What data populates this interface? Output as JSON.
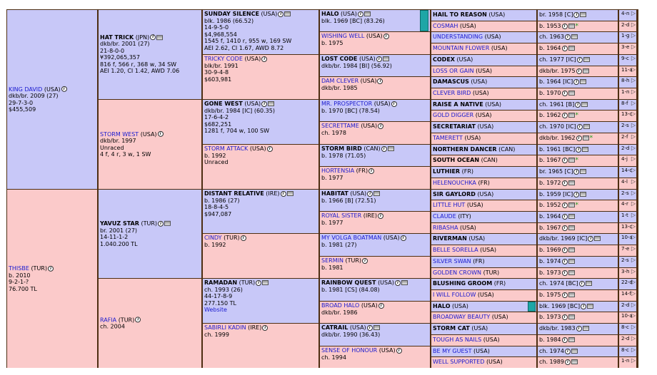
{
  "gen1": [
    {
      "name": "KING DAVID",
      "country": "(USA)",
      "color": "dkb/br. 2009 (27)",
      "lines": [
        "29-7-3-0",
        "$455,509"
      ],
      "sex": "m"
    },
    {
      "name": "THISBE",
      "country": "(TUR)",
      "color": "b. 2010",
      "lines": [
        "9-2-1-?",
        "76.700 TL"
      ],
      "sex": "f"
    }
  ],
  "gen2": [
    {
      "name": "HAT TRICK",
      "country": "(JPN)",
      "color": "dkb/br. 2001 (27)",
      "lines": [
        "21-8-0-0",
        "¥392,065,357",
        "816 f, 566 r, 368 w, 34 SW",
        "AEI 1.20, CI 1.42, AWD 7.06"
      ],
      "sex": "m",
      "bold": true
    },
    {
      "name": "STORM WEST",
      "country": "(USA)",
      "color": "dkb/br. 1997",
      "lines": [
        "Unraced",
        "4 f, 4 r, 3 w, 1 SW"
      ],
      "sex": "f",
      "bold": false
    },
    {
      "name": "YAVUZ STAR",
      "country": "(TUR)",
      "color": "br. 2001 (27)",
      "lines": [
        "14-11-1-2",
        "1.040.200 TL"
      ],
      "sex": "m",
      "bold": true
    },
    {
      "name": "RAFIA",
      "country": "(TUR)",
      "color": "ch. 2004",
      "lines": [],
      "sex": "f",
      "bold": false
    }
  ],
  "gen3": [
    {
      "name": "SUNDAY SILENCE",
      "country": "(USA)",
      "color": "blk. 1986 (66.52)",
      "lines": [
        "14-9-5-0",
        "$4,968,554",
        "1545 f, 1410 r, 955 w, 169 SW",
        "AEI 2.62, CI 1.67, AWD 8.72"
      ],
      "sex": "m",
      "bold": true
    },
    {
      "name": "TRICKY CODE",
      "country": "(USA)",
      "color": "blk/br. 1991",
      "lines": [
        "30-9-4-8",
        "$603,981"
      ],
      "sex": "f",
      "bold": false
    },
    {
      "name": "GONE WEST",
      "country": "(USA)",
      "color": "dkb/br. 1984 [IC] (60.35)",
      "lines": [
        "17-6-4-2",
        "$682,251",
        "1281 f, 704 w, 100 SW"
      ],
      "sex": "m",
      "bold": true
    },
    {
      "name": "STORM ATTACK",
      "country": "(USA)",
      "color": "b. 1992",
      "lines": [
        "Unraced"
      ],
      "sex": "f",
      "bold": false
    },
    {
      "name": "DISTANT RELATIVE",
      "country": "(IRE)",
      "color": "b. 1986 (27)",
      "lines": [
        "18-8-4-5",
        "$947,087"
      ],
      "sex": "m",
      "bold": true
    },
    {
      "name": "CINDY",
      "country": "(TUR)",
      "color": "b. 1992",
      "lines": [],
      "sex": "f",
      "bold": false
    },
    {
      "name": "RAMADAN",
      "country": "(TUR)",
      "color": "ch. 1993 (26)",
      "lines": [
        "44-17-8-9",
        "277.150 TL"
      ],
      "website": "Website",
      "sex": "m",
      "bold": true
    },
    {
      "name": "SABIRLI KADIN",
      "country": "(IRE)",
      "color": "ch. 1999",
      "lines": [],
      "sex": "f",
      "bold": false
    }
  ],
  "gen4": [
    {
      "name": "HALO",
      "country": "(USA)",
      "color": "blk. 1969 [BC] (83.26)",
      "sex": "m",
      "bold": true,
      "teal": true
    },
    {
      "name": "WISHING WELL",
      "country": "(USA)",
      "color": "b. 1975",
      "sex": "f",
      "bold": false
    },
    {
      "name": "LOST CODE",
      "country": "(USA)",
      "color": "dkb/br. 1984 [BI] (56.92)",
      "sex": "m",
      "bold": true
    },
    {
      "name": "DAM CLEVER",
      "country": "(USA)",
      "color": "dkb/br. 1985",
      "sex": "f",
      "bold": false
    },
    {
      "name": "MR. PROSPECTOR",
      "country": "(USA)",
      "color": "b. 1970 [BC] (78.54)",
      "sex": "m",
      "bold": false
    },
    {
      "name": "SECRETTAME",
      "country": "(USA)",
      "color": "ch. 1978",
      "sex": "f",
      "bold": false
    },
    {
      "name": "STORM BIRD",
      "country": "(CAN)",
      "color": "b. 1978 (71.05)",
      "sex": "m",
      "bold": true
    },
    {
      "name": "HORTENSIA",
      "country": "(FR)",
      "color": "b. 1977",
      "sex": "f",
      "bold": false
    },
    {
      "name": "HABITAT",
      "country": "(USA)",
      "color": "b. 1966 [B] (72.51)",
      "sex": "m",
      "bold": true
    },
    {
      "name": "ROYAL SISTER",
      "country": "(IRE)",
      "color": "b. 1977",
      "sex": "f",
      "bold": false
    },
    {
      "name": "MY VOLGA BOATMAN",
      "country": "(USA)",
      "color": "b. 1981 (27)",
      "sex": "m",
      "bold": false
    },
    {
      "name": "SERMIN",
      "country": "(TUR)",
      "color": "b. 1981",
      "sex": "f",
      "bold": false
    },
    {
      "name": "RAINBOW QUEST",
      "country": "(USA)",
      "color": "b. 1981 [CS] (84.08)",
      "sex": "m",
      "bold": true
    },
    {
      "name": "BROAD HALO",
      "country": "(USA)",
      "color": "dkb/br. 1986",
      "sex": "f",
      "bold": false
    },
    {
      "name": "CATRAIL",
      "country": "(USA)",
      "color": "dkb/br. 1990 (36.43)",
      "sex": "m",
      "bold": true
    },
    {
      "name": "SENSE OF HONOUR",
      "country": "(USA)",
      "color": "ch. 1994",
      "sex": "f",
      "bold": false
    }
  ],
  "gen5": [
    {
      "name": "HAIL TO REASON",
      "country": "(USA)",
      "color": "br. 1958 [C]",
      "num": "4-n",
      "sex": "m",
      "bold": true
    },
    {
      "name": "COSMAH",
      "country": "(USA)",
      "color": "b. 1953",
      "num": "2-d",
      "sex": "f",
      "bold": false,
      "star": true
    },
    {
      "name": "UNDERSTANDING",
      "country": "(USA)",
      "color": "ch. 1963",
      "num": "1-g",
      "sex": "m",
      "bold": false
    },
    {
      "name": "MOUNTAIN FLOWER",
      "country": "(USA)",
      "color": "b. 1964",
      "num": "3-e",
      "sex": "f",
      "bold": false
    },
    {
      "name": "CODEX",
      "country": "(USA)",
      "color": "ch. 1977 [IC]",
      "num": "9-c",
      "sex": "m",
      "bold": true
    },
    {
      "name": "LOSS OR GAIN",
      "country": "(USA)",
      "color": "dkb/br. 1975",
      "num": "11-a",
      "sex": "f",
      "bold": false
    },
    {
      "name": "DAMASCUS",
      "country": "(USA)",
      "color": "b. 1964 [IC]",
      "num": "8-h",
      "sex": "m",
      "bold": true
    },
    {
      "name": "CLEVER BIRD",
      "country": "(USA)",
      "color": "b. 1970",
      "num": "1-n",
      "sex": "f",
      "bold": false
    },
    {
      "name": "RAISE A NATIVE",
      "country": "(USA)",
      "color": "ch. 1961 [B]",
      "num": "8-f",
      "sex": "m",
      "bold": true
    },
    {
      "name": "GOLD DIGGER",
      "country": "(USA)",
      "color": "b. 1962",
      "num": "13-c",
      "sex": "f",
      "bold": false,
      "star": true
    },
    {
      "name": "SECRETARIAT",
      "country": "(USA)",
      "color": "ch. 1970 [IC]",
      "num": "2-s",
      "sex": "m",
      "bold": true
    },
    {
      "name": "TAMERETT",
      "country": "(USA)",
      "color": "dkb/br. 1962",
      "num": "2-f",
      "sex": "f",
      "bold": false,
      "star": true
    },
    {
      "name": "NORTHERN DANCER",
      "country": "(CAN)",
      "color": "b. 1961 [BC]",
      "num": "2-d",
      "sex": "m",
      "bold": true
    },
    {
      "name": "SOUTH OCEAN",
      "country": "(CAN)",
      "color": "b. 1967",
      "num": "4-j",
      "sex": "f",
      "bold": true,
      "star": true
    },
    {
      "name": "LUTHIER",
      "country": "(FR)",
      "color": "br. 1965 [C]",
      "num": "14-c",
      "sex": "m",
      "bold": true
    },
    {
      "name": "HELENOUCHKA",
      "country": "(FR)",
      "color": "b. 1972",
      "num": "4-l",
      "sex": "f",
      "bold": false
    },
    {
      "name": "SIR GAYLORD",
      "country": "(USA)",
      "color": "b. 1959 [IC]",
      "num": "2-s",
      "sex": "m",
      "bold": true
    },
    {
      "name": "LITTLE HUT",
      "country": "(USA)",
      "color": "b. 1952",
      "num": "4-r",
      "sex": "f",
      "bold": false,
      "star": true
    },
    {
      "name": "CLAUDE",
      "country": "(ITY)",
      "color": "b. 1964",
      "num": "1-t",
      "sex": "m",
      "bold": false
    },
    {
      "name": "RIBASHA",
      "country": "(USA)",
      "color": "b. 1967",
      "num": "13-c",
      "sex": "f",
      "bold": false
    },
    {
      "name": "RIVERMAN",
      "country": "(USA)",
      "color": "dkb/br. 1969 [IC]",
      "num": "10-a",
      "sex": "m",
      "bold": true
    },
    {
      "name": "BELLE SORELLA",
      "country": "(USA)",
      "color": "b. 1969",
      "num": "7-e",
      "sex": "f",
      "bold": false
    },
    {
      "name": "SILVER SWAN",
      "country": "(FR)",
      "color": "b. 1974",
      "num": "2-s",
      "sex": "m",
      "bold": false
    },
    {
      "name": "GOLDEN CROWN",
      "country": "(TUR)",
      "color": "b. 1973",
      "num": "3-h",
      "sex": "f",
      "bold": false
    },
    {
      "name": "BLUSHING GROOM",
      "country": "(FR)",
      "color": "ch. 1974 [BC]",
      "num": "22-d",
      "sex": "m",
      "bold": true
    },
    {
      "name": "I WILL FOLLOW",
      "country": "(USA)",
      "color": "b. 1975",
      "num": "14-f",
      "sex": "f",
      "bold": false
    },
    {
      "name": "HALO",
      "country": "(USA)",
      "color": "blk. 1969 [BC]",
      "num": "2-d",
      "sex": "m",
      "bold": true,
      "teal": true
    },
    {
      "name": "BROADWAY BEAUTY",
      "country": "(USA)",
      "color": "b. 1973",
      "num": "10-a",
      "sex": "f",
      "bold": false
    },
    {
      "name": "STORM CAT",
      "country": "(USA)",
      "color": "dkb/br. 1983",
      "num": "8-c",
      "sex": "m",
      "bold": true
    },
    {
      "name": "TOUGH AS NAILS",
      "country": "(USA)",
      "color": "b. 1984",
      "num": "2-d",
      "sex": "f",
      "bold": false
    },
    {
      "name": "BE MY GUEST",
      "country": "(USA)",
      "color": "ch. 1974",
      "num": "8-c",
      "sex": "m",
      "bold": false
    },
    {
      "name": "WELL SUPPORTED",
      "country": "(USA)",
      "color": "ch. 1989",
      "num": "1-n",
      "sex": "f",
      "bold": false
    }
  ],
  "colors": {
    "male": "#c8c8f8",
    "female": "#fbcaca",
    "border": "#4d2e12",
    "link": "#1a1ad0",
    "teal": "#1ea6a6"
  }
}
